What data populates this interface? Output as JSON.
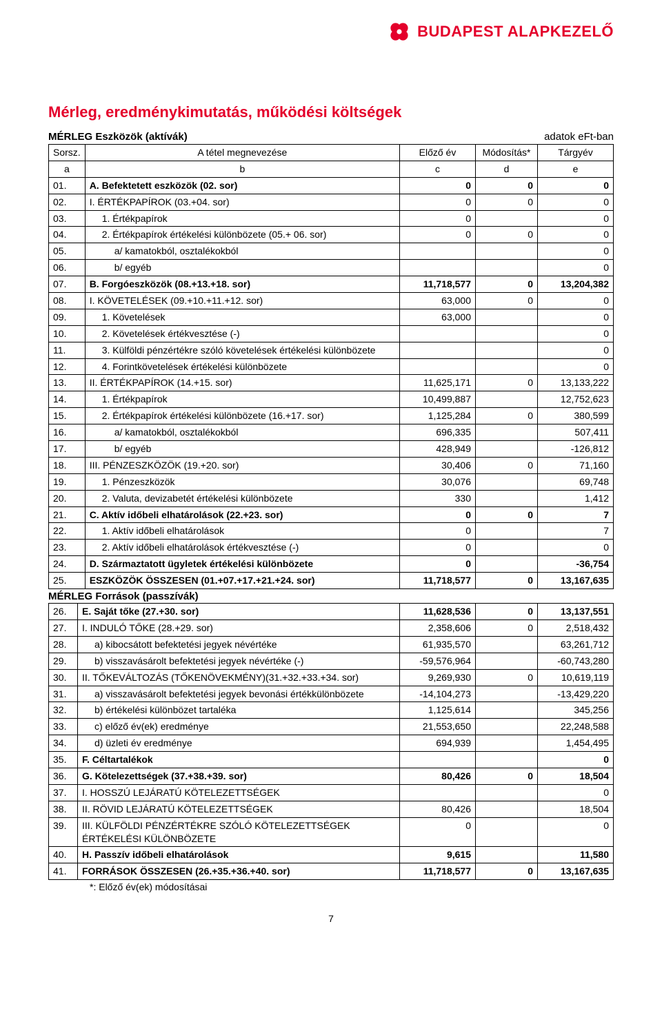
{
  "brand": {
    "name": "BUDAPEST ALAPKEZELŐ",
    "color": "#e4002b"
  },
  "title": "Mérleg, eredménykimutatás, működési költségek",
  "assets_heading": "MÉRLEG Eszközök (aktívák)",
  "units_label": "adatok eFt-ban",
  "liab_heading": "MÉRLEG  Források (passzívák)",
  "footnote": "*: Előző év(ek) módosításai",
  "page_number": "7",
  "header": {
    "sorsz": "Sorsz.",
    "name": "A tétel megnevezése",
    "prev": "Előző év",
    "mod": "Módosítás*",
    "targy": "Tárgyév",
    "a": "a",
    "b": "b",
    "c": "c",
    "d": "d",
    "e": "e"
  },
  "rows": [
    {
      "n": "01.",
      "name": "A. Befektetett eszközök (02. sor)",
      "c": "0",
      "d": "0",
      "e": "0",
      "bold": true
    },
    {
      "n": "02.",
      "name": "I. ÉRTÉKPAPÍROK (03.+04. sor)",
      "c": "0",
      "d": "0",
      "e": "0"
    },
    {
      "n": "03.",
      "name": "1. Értékpapírok",
      "c": "0",
      "d": "",
      "e": "0",
      "indent": 1
    },
    {
      "n": "04.",
      "name": "2. Értékpapírok értékelési különbözete (05.+ 06. sor)",
      "c": "0",
      "d": "0",
      "e": "0",
      "indent": 1
    },
    {
      "n": "05.",
      "name": "a/ kamatokból, osztalékokból",
      "c": "",
      "d": "",
      "e": "0",
      "indent": 2
    },
    {
      "n": "06.",
      "name": "b/ egyéb",
      "c": "",
      "d": "",
      "e": "0",
      "indent": 2
    },
    {
      "n": "07.",
      "name": "B. Forgóeszközök (08.+13.+18. sor)",
      "c": "11,718,577",
      "d": "0",
      "e": "13,204,382",
      "bold": true
    },
    {
      "n": "08.",
      "name": "I. KÖVETELÉSEK (09.+10.+11.+12. sor)",
      "c": "63,000",
      "d": "0",
      "e": "0"
    },
    {
      "n": "09.",
      "name": "1. Követelések",
      "c": "63,000",
      "d": "",
      "e": "0",
      "indent": 1
    },
    {
      "n": "10.",
      "name": "2. Követelések értékvesztése (-)",
      "c": "",
      "d": "",
      "e": "0",
      "indent": 1
    },
    {
      "n": "11.",
      "name": "3. Külföldi pénzértékre szóló követelések értékelési különbözete",
      "c": "",
      "d": "",
      "e": "0",
      "indent": 1
    },
    {
      "n": "12.",
      "name": "4. Forintkövetelések értékelési különbözete",
      "c": "",
      "d": "",
      "e": "0",
      "indent": 1
    },
    {
      "n": "13.",
      "name": "II. ÉRTÉKPAPÍROK (14.+15. sor)",
      "c": "11,625,171",
      "d": "0",
      "e": "13,133,222"
    },
    {
      "n": "14.",
      "name": "1. Értékpapírok",
      "c": "10,499,887",
      "d": "",
      "e": "12,752,623",
      "indent": 1
    },
    {
      "n": "15.",
      "name": "2. Értékpapírok értékelési különbözete (16.+17. sor)",
      "c": "1,125,284",
      "d": "0",
      "e": "380,599",
      "indent": 1
    },
    {
      "n": "16.",
      "name": "a/ kamatokból, osztalékokból",
      "c": "696,335",
      "d": "",
      "e": "507,411",
      "indent": 2
    },
    {
      "n": "17.",
      "name": "b/ egyéb",
      "c": "428,949",
      "d": "",
      "e": "-126,812",
      "indent": 2
    },
    {
      "n": "18.",
      "name": "III. PÉNZESZKÖZÖK (19.+20. sor)",
      "c": "30,406",
      "d": "0",
      "e": "71,160"
    },
    {
      "n": "19.",
      "name": "1. Pénzeszközök",
      "c": "30,076",
      "d": "",
      "e": "69,748",
      "indent": 1
    },
    {
      "n": "20.",
      "name": "2. Valuta, devizabetét értékelési különbözete",
      "c": "330",
      "d": "",
      "e": "1,412",
      "indent": 1
    },
    {
      "n": "21.",
      "name": "C. Aktív időbeli elhatárolások (22.+23. sor)",
      "c": "0",
      "d": "0",
      "e": "7",
      "bold": true
    },
    {
      "n": "22.",
      "name": "1. Aktív időbeli elhatárolások",
      "c": "0",
      "d": "",
      "e": "7",
      "indent": 1
    },
    {
      "n": "23.",
      "name": "2. Aktív időbeli elhatárolások értékvesztése (-)",
      "c": "0",
      "d": "",
      "e": "0",
      "indent": 1
    },
    {
      "n": "24.",
      "name": "D. Származtatott ügyletek értékelési különbözete",
      "c": "0",
      "d": "",
      "e": "-36,754",
      "bold": true
    },
    {
      "n": "25.",
      "name": "ESZKÖZÖK ÖSSZESEN (01.+07.+17.+21.+24. sor)",
      "c": "11,718,577",
      "d": "0",
      "e": "13,167,635",
      "bold": true
    }
  ],
  "rows2": [
    {
      "n": "26.",
      "name": "E. Saját tőke (27.+30. sor)",
      "c": "11,628,536",
      "d": "0",
      "e": "13,137,551",
      "bold": true
    },
    {
      "n": "27.",
      "name": "I. INDULÓ TŐKE (28.+29. sor)",
      "c": "2,358,606",
      "d": "0",
      "e": "2,518,432"
    },
    {
      "n": "28.",
      "name": "a) kibocsátott befektetési jegyek névértéke",
      "c": "61,935,570",
      "d": "",
      "e": "63,261,712",
      "indent": 1
    },
    {
      "n": "29.",
      "name": "b) visszavásárolt befektetési jegyek névértéke (-)",
      "c": "-59,576,964",
      "d": "",
      "e": "-60,743,280",
      "indent": 1
    },
    {
      "n": "30.",
      "name": "II. TŐKEVÁLTOZÁS (TŐKENÖVEKMÉNY)(31.+32.+33.+34. sor)",
      "c": "9,269,930",
      "d": "0",
      "e": "10,619,119"
    },
    {
      "n": "31.",
      "name": "a) visszavásárolt befektetési jegyek bevonási értékkülönbözete",
      "c": "-14,104,273",
      "d": "",
      "e": "-13,429,220",
      "indent": 1
    },
    {
      "n": "32.",
      "name": "b) értékelési különbözet tartaléka",
      "c": "1,125,614",
      "d": "",
      "e": "345,256",
      "indent": 1
    },
    {
      "n": "33.",
      "name": "c) előző év(ek) eredménye",
      "c": "21,553,650",
      "d": "",
      "e": "22,248,588",
      "indent": 1
    },
    {
      "n": "34.",
      "name": "d) üzleti év eredménye",
      "c": "694,939",
      "d": "",
      "e": "1,454,495",
      "indent": 1
    },
    {
      "n": "35.",
      "name": "F. Céltartalékok",
      "c": "",
      "d": "",
      "e": "0",
      "bold": true
    },
    {
      "n": "36.",
      "name": "G. Kötelezettségek (37.+38.+39. sor)",
      "c": "80,426",
      "d": "0",
      "e": "18,504",
      "bold": true
    },
    {
      "n": "37.",
      "name": "I. HOSSZÚ LEJÁRATÚ KÖTELEZETTSÉGEK",
      "c": "",
      "d": "",
      "e": "0"
    },
    {
      "n": "38.",
      "name": "II. RÖVID LEJÁRATÚ KÖTELEZETTSÉGEK",
      "c": "80,426",
      "d": "",
      "e": "18,504"
    },
    {
      "n": "39.",
      "name": "III. KÜLFÖLDI PÉNZÉRTÉKRE SZÓLÓ KÖTELEZETTSÉGEK ÉRTÉKELÉSI KÜLÖNBÖZETE",
      "c": "0",
      "d": "",
      "e": "0"
    },
    {
      "n": "40.",
      "name": "H. Passzív időbeli elhatárolások",
      "c": "9,615",
      "d": "",
      "e": "11,580",
      "bold": true
    },
    {
      "n": "41.",
      "name": "FORRÁSOK ÖSSZESEN (26.+35.+36.+40. sor)",
      "c": "11,718,577",
      "d": "0",
      "e": "13,167,635",
      "bold": true
    }
  ]
}
